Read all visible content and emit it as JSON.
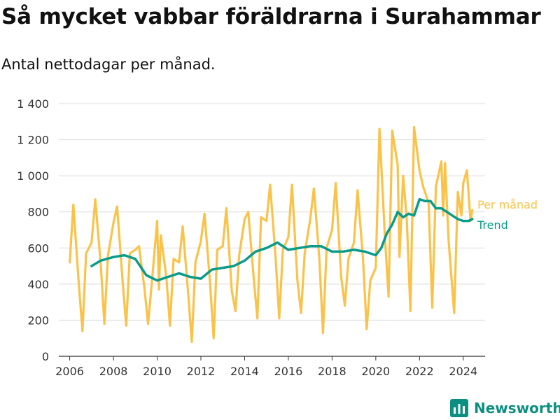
{
  "title": "Så mycket vabbar föräldrarna i Surahammar",
  "subtitle": "Antal nettodagar per månad.",
  "brand": {
    "name": "Newsworthy",
    "color": "#0c8f80",
    "icon": "bar-chart-logo-icon"
  },
  "chart_data": {
    "type": "line",
    "ylim": [
      0,
      1400
    ],
    "yticks": [
      0,
      200,
      400,
      600,
      800,
      1000,
      1200,
      1400
    ],
    "ytick_labels": [
      "0",
      "200",
      "400",
      "600",
      "800",
      "1 000",
      "1 200",
      "1 400"
    ],
    "xlim": [
      "2005-07",
      "2025-01"
    ],
    "xticks": [
      "2006-01",
      "2008-01",
      "2010-01",
      "2012-01",
      "2014-01",
      "2016-01",
      "2018-01",
      "2020-01",
      "2022-01",
      "2024-01"
    ],
    "xtick_labels": [
      "2006",
      "2008",
      "2010",
      "2012",
      "2014",
      "2016",
      "2018",
      "2020",
      "2022",
      "2024"
    ],
    "grid": "horizontal",
    "legend": "direct-labels-right",
    "series": [
      {
        "name": "Per månad",
        "color": "#fbc24a",
        "points": [
          [
            "2006-01",
            520
          ],
          [
            "2006-03",
            840
          ],
          [
            "2006-06",
            400
          ],
          [
            "2006-08",
            140
          ],
          [
            "2006-10",
            570
          ],
          [
            "2007-01",
            630
          ],
          [
            "2007-03",
            870
          ],
          [
            "2007-06",
            510
          ],
          [
            "2007-08",
            180
          ],
          [
            "2007-10",
            560
          ],
          [
            "2008-01",
            740
          ],
          [
            "2008-03",
            830
          ],
          [
            "2008-06",
            420
          ],
          [
            "2008-08",
            170
          ],
          [
            "2008-10",
            570
          ],
          [
            "2009-01",
            590
          ],
          [
            "2009-03",
            610
          ],
          [
            "2009-06",
            380
          ],
          [
            "2009-08",
            180
          ],
          [
            "2009-10",
            400
          ],
          [
            "2010-01",
            750
          ],
          [
            "2010-02",
            370
          ],
          [
            "2010-03",
            670
          ],
          [
            "2010-06",
            440
          ],
          [
            "2010-08",
            170
          ],
          [
            "2010-10",
            540
          ],
          [
            "2011-01",
            520
          ],
          [
            "2011-03",
            720
          ],
          [
            "2011-06",
            350
          ],
          [
            "2011-08",
            80
          ],
          [
            "2011-10",
            520
          ],
          [
            "2012-01",
            640
          ],
          [
            "2012-03",
            790
          ],
          [
            "2012-06",
            410
          ],
          [
            "2012-08",
            100
          ],
          [
            "2012-10",
            590
          ],
          [
            "2013-01",
            610
          ],
          [
            "2013-03",
            820
          ],
          [
            "2013-06",
            360
          ],
          [
            "2013-08",
            250
          ],
          [
            "2013-10",
            560
          ],
          [
            "2014-01",
            760
          ],
          [
            "2014-03",
            800
          ],
          [
            "2014-06",
            430
          ],
          [
            "2014-08",
            210
          ],
          [
            "2014-10",
            770
          ],
          [
            "2015-01",
            750
          ],
          [
            "2015-03",
            950
          ],
          [
            "2015-06",
            550
          ],
          [
            "2015-08",
            210
          ],
          [
            "2015-10",
            590
          ],
          [
            "2016-01",
            660
          ],
          [
            "2016-03",
            950
          ],
          [
            "2016-06",
            420
          ],
          [
            "2016-08",
            240
          ],
          [
            "2016-10",
            570
          ],
          [
            "2017-01",
            760
          ],
          [
            "2017-03",
            930
          ],
          [
            "2017-06",
            540
          ],
          [
            "2017-08",
            130
          ],
          [
            "2017-10",
            600
          ],
          [
            "2018-01",
            700
          ],
          [
            "2018-03",
            960
          ],
          [
            "2018-06",
            440
          ],
          [
            "2018-08",
            280
          ],
          [
            "2018-10",
            540
          ],
          [
            "2019-01",
            630
          ],
          [
            "2019-03",
            920
          ],
          [
            "2019-06",
            540
          ],
          [
            "2019-08",
            150
          ],
          [
            "2019-10",
            420
          ],
          [
            "2020-01",
            490
          ],
          [
            "2020-03",
            1260
          ],
          [
            "2020-06",
            660
          ],
          [
            "2020-08",
            330
          ],
          [
            "2020-10",
            1250
          ],
          [
            "2021-01",
            1060
          ],
          [
            "2021-02",
            550
          ],
          [
            "2021-04",
            1000
          ],
          [
            "2021-06",
            760
          ],
          [
            "2021-08",
            250
          ],
          [
            "2021-10",
            1270
          ],
          [
            "2022-01",
            1030
          ],
          [
            "2022-03",
            940
          ],
          [
            "2022-06",
            850
          ],
          [
            "2022-08",
            270
          ],
          [
            "2022-10",
            940
          ],
          [
            "2023-01",
            1080
          ],
          [
            "2023-02",
            780
          ],
          [
            "2023-03",
            1070
          ],
          [
            "2023-05",
            640
          ],
          [
            "2023-08",
            240
          ],
          [
            "2023-10",
            910
          ],
          [
            "2023-12",
            780
          ],
          [
            "2024-01",
            960
          ],
          [
            "2024-03",
            1030
          ],
          [
            "2024-05",
            750
          ],
          [
            "2024-06",
            810
          ]
        ]
      },
      {
        "name": "Trend",
        "color": "#0a9b8a",
        "points": [
          [
            "2007-01",
            500
          ],
          [
            "2007-06",
            530
          ],
          [
            "2008-01",
            550
          ],
          [
            "2008-07",
            560
          ],
          [
            "2009-01",
            540
          ],
          [
            "2009-07",
            450
          ],
          [
            "2010-01",
            420
          ],
          [
            "2010-07",
            440
          ],
          [
            "2011-01",
            460
          ],
          [
            "2011-07",
            440
          ],
          [
            "2012-01",
            430
          ],
          [
            "2012-07",
            480
          ],
          [
            "2013-01",
            490
          ],
          [
            "2013-07",
            500
          ],
          [
            "2014-01",
            530
          ],
          [
            "2014-07",
            580
          ],
          [
            "2015-01",
            600
          ],
          [
            "2015-07",
            630
          ],
          [
            "2016-01",
            590
          ],
          [
            "2016-07",
            600
          ],
          [
            "2017-01",
            610
          ],
          [
            "2017-07",
            610
          ],
          [
            "2018-01",
            580
          ],
          [
            "2018-07",
            580
          ],
          [
            "2019-01",
            590
          ],
          [
            "2019-07",
            580
          ],
          [
            "2020-01",
            560
          ],
          [
            "2020-04",
            600
          ],
          [
            "2020-07",
            680
          ],
          [
            "2020-10",
            730
          ],
          [
            "2021-01",
            800
          ],
          [
            "2021-04",
            770
          ],
          [
            "2021-07",
            790
          ],
          [
            "2021-10",
            780
          ],
          [
            "2022-01",
            870
          ],
          [
            "2022-04",
            860
          ],
          [
            "2022-07",
            860
          ],
          [
            "2022-10",
            820
          ],
          [
            "2023-01",
            820
          ],
          [
            "2023-04",
            800
          ],
          [
            "2023-07",
            780
          ],
          [
            "2023-10",
            760
          ],
          [
            "2024-01",
            750
          ],
          [
            "2024-04",
            750
          ],
          [
            "2024-06",
            760
          ]
        ]
      }
    ]
  }
}
